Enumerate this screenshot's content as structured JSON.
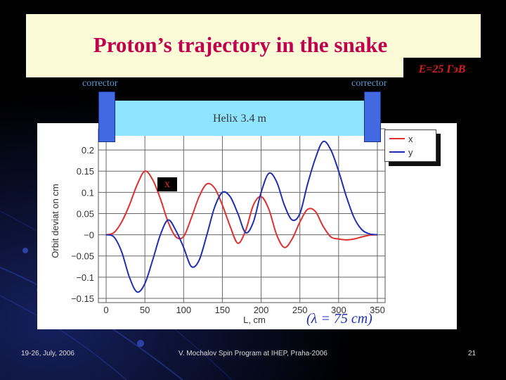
{
  "slide": {
    "title": "Proton’s trajectory in the snake",
    "energy_label": "E=25 ГэВ",
    "left_corrector_label": "corrector",
    "right_corrector_label": "corrector",
    "helix_label": "Helix 3.4 m",
    "x_marker": "x",
    "lambda_note": "(λ = 75 cm)",
    "footer_date": "19-26, July, 2006",
    "footer_center": "V. Mochalov Spin Program at IHEP, Praha-2006",
    "page_number": "21"
  },
  "colors": {
    "title": "#c0004f",
    "title_box": "#fbfbd8",
    "helix": "#8fe4ff",
    "corrector": "#4169e1",
    "series_x": "#e03030",
    "series_y": "#1e2fb4"
  },
  "chart_data": {
    "type": "line",
    "xlabel": "L, cm",
    "ylabel": "Orbit deviat on cm",
    "xlim": [
      -10,
      360
    ],
    "ylim": [
      -0.16,
      0.25
    ],
    "x_ticks": [
      0,
      50,
      100,
      150,
      200,
      250,
      300,
      350
    ],
    "x_tick_labels": [
      "0",
      "50",
      "100",
      "150",
      "200",
      "250",
      "300",
      "350"
    ],
    "y_ticks": [
      -0.15,
      -0.1,
      -0.05,
      0,
      0.05,
      0.1,
      0.15,
      0.2
    ],
    "y_tick_labels": [
      "−0.15",
      "−0.1",
      "−0.05",
      "−0",
      "0.05",
      "0.1",
      "0.15",
      "0.2"
    ],
    "grid": true,
    "legend_position": "top-right",
    "series": [
      {
        "name": "x",
        "color": "#e03030",
        "x": [
          0,
          10,
          20,
          30,
          40,
          50,
          60,
          70,
          80,
          90,
          100,
          110,
          120,
          130,
          140,
          150,
          160,
          170,
          180,
          190,
          200,
          210,
          220,
          230,
          240,
          250,
          260,
          270,
          280,
          290,
          300,
          310,
          320,
          330,
          340,
          350
        ],
        "y": [
          0,
          0.005,
          0.03,
          0.07,
          0.118,
          0.15,
          0.13,
          0.085,
          0.03,
          -0.005,
          -0.004,
          0.04,
          0.09,
          0.12,
          0.11,
          0.07,
          0.02,
          -0.02,
          0.01,
          0.07,
          0.09,
          0.06,
          0.0,
          -0.03,
          -0.01,
          0.03,
          0.06,
          0.055,
          0.02,
          -0.005,
          -0.01,
          -0.012,
          -0.01,
          -0.005,
          -0.001,
          0
        ]
      },
      {
        "name": "y",
        "color": "#1e2fb4",
        "x": [
          0,
          10,
          20,
          30,
          40,
          50,
          60,
          70,
          80,
          90,
          100,
          110,
          120,
          130,
          140,
          150,
          160,
          170,
          180,
          190,
          200,
          210,
          220,
          230,
          240,
          250,
          260,
          270,
          280,
          290,
          300,
          310,
          320,
          330,
          340,
          350
        ],
        "y": [
          0,
          -0.005,
          -0.04,
          -0.1,
          -0.135,
          -0.115,
          -0.06,
          0.0,
          0.035,
          0.01,
          -0.03,
          -0.075,
          -0.06,
          0.0,
          0.065,
          0.1,
          0.09,
          0.05,
          0.005,
          0.03,
          0.1,
          0.145,
          0.125,
          0.07,
          0.035,
          0.05,
          0.12,
          0.18,
          0.22,
          0.2,
          0.15,
          0.09,
          0.04,
          0.012,
          0.002,
          0
        ]
      }
    ]
  }
}
